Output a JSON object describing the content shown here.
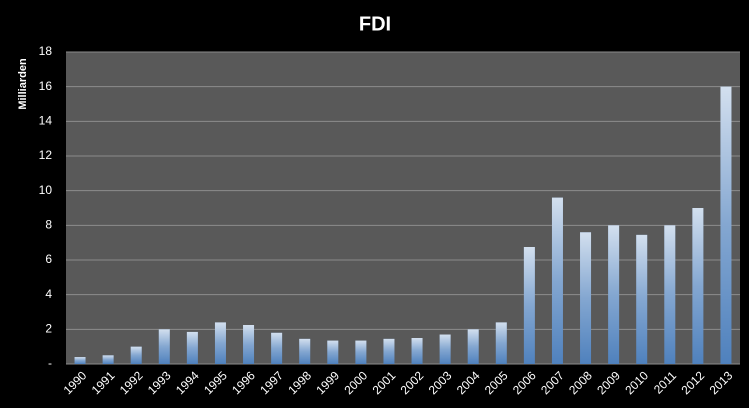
{
  "chart_data": {
    "type": "bar",
    "title": "FDI",
    "y_label": "Milliarden",
    "categories": [
      "1990",
      "1991",
      "1992",
      "1993",
      "1994",
      "1995",
      "1996",
      "1997",
      "1998",
      "1999",
      "2000",
      "2001",
      "2002",
      "2003",
      "2004",
      "2005",
      "2006",
      "2007",
      "2008",
      "2009",
      "2010",
      "2011",
      "2012",
      "2013"
    ],
    "values": [
      0.4,
      0.5,
      1.0,
      2.0,
      1.85,
      2.4,
      2.25,
      1.8,
      1.45,
      1.35,
      1.35,
      1.45,
      1.5,
      1.7,
      2.0,
      2.4,
      6.75,
      9.6,
      7.6,
      8.0,
      7.45,
      8.0,
      9.0,
      16.0
    ],
    "color": "#4f81bd",
    "ylim": [
      0,
      18
    ],
    "yticks": [
      {
        "value": 0,
        "label": "-"
      },
      2,
      4,
      6,
      8,
      10,
      12,
      14,
      16,
      18
    ],
    "grid": true
  }
}
